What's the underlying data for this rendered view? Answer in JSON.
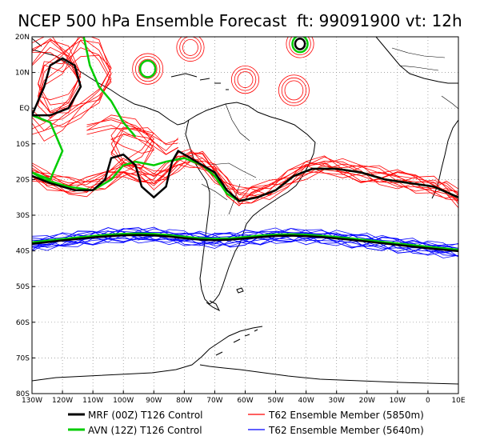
{
  "title": "NCEP 500 hPa Ensemble Forecast  ft: 99091900 vt: 12h",
  "lat_labels": [
    "20N",
    "10N",
    "EQ",
    "10S",
    "20S",
    "30S",
    "40S",
    "50S",
    "60S",
    "70S",
    "80S"
  ],
  "lon_labels": [
    "130W",
    "120W",
    "110W",
    "100W",
    "90W",
    "80W",
    "70W",
    "60W",
    "50W",
    "40W",
    "30W",
    "20W",
    "10W",
    "0",
    "10E"
  ],
  "legend": [
    {
      "label": "MRF (00Z) T126 Control",
      "color": "#000000"
    },
    {
      "label": "AVN (12Z) T126 Control",
      "color": "#00cc00"
    },
    {
      "label": "T62 Ensemble Member (5850m)",
      "color": "#ff0000"
    },
    {
      "label": "T62 Ensemble Member (5640m)",
      "color": "#0000ff"
    }
  ],
  "colors": {
    "mrf": "#000000",
    "avn": "#00cc00",
    "ens_5850": "#ff0000",
    "ens_5640": "#0000ff",
    "grid": "#888888",
    "coast": "#000000"
  },
  "map_extent": {
    "lon": [
      -130,
      10
    ],
    "lat": [
      -80,
      20
    ]
  },
  "grid": {
    "lon_step": 10,
    "lat_step": 10,
    "style": "dotted"
  }
}
